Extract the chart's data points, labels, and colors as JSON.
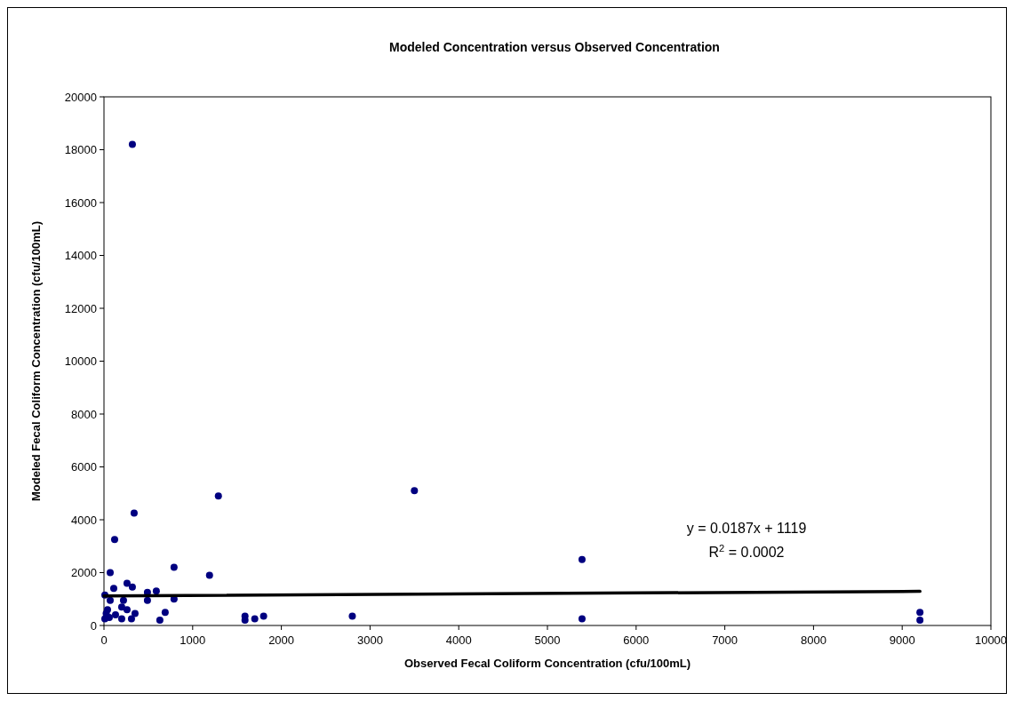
{
  "chart_data": {
    "type": "scatter",
    "title": "Modeled Concentration versus Observed Concentration",
    "xlabel": "Observed Fecal Coliform Concentration (cfu/100mL)",
    "ylabel": "Modeled Fecal Coliform Concentration (cfu/100mL)",
    "xlim": [
      0,
      10000
    ],
    "ylim": [
      0,
      20000
    ],
    "xticks": [
      0,
      1000,
      2000,
      3000,
      4000,
      5000,
      6000,
      7000,
      8000,
      9000,
      10000
    ],
    "yticks": [
      0,
      2000,
      4000,
      6000,
      8000,
      10000,
      12000,
      14000,
      16000,
      18000,
      20000
    ],
    "marker": "circle",
    "annotations": [
      "y = 0.0187x + 1119",
      "R$^{2}$ = 0.0002"
    ],
    "series": [
      {
        "color": "#000080",
        "x": [
          320,
          340,
          120,
          790,
          70,
          1190,
          260,
          320,
          110,
          10,
          490,
          590,
          70,
          220,
          490,
          790,
          200,
          260,
          40,
          350,
          690,
          630,
          310,
          25,
          200,
          10,
          130,
          60,
          1590,
          1590,
          1700,
          1800,
          1290,
          3500,
          2800,
          5390,
          5390,
          9200,
          9200
        ],
        "values": [
          18200,
          4250,
          3250,
          2200,
          2000,
          1900,
          1600,
          1450,
          1400,
          1150,
          1250,
          1300,
          950,
          950,
          950,
          1000,
          700,
          600,
          600,
          450,
          500,
          200,
          250,
          450,
          250,
          250,
          400,
          300,
          350,
          200,
          250,
          350,
          4900,
          5100,
          350,
          2500,
          250,
          500,
          200
        ]
      },
      {
        "type": "line",
        "color": "#000000",
        "line_style": "solid",
        "marker": "none",
        "x": [
          0,
          9200
        ],
        "values": [
          1120,
          1290
        ]
      }
    ]
  }
}
